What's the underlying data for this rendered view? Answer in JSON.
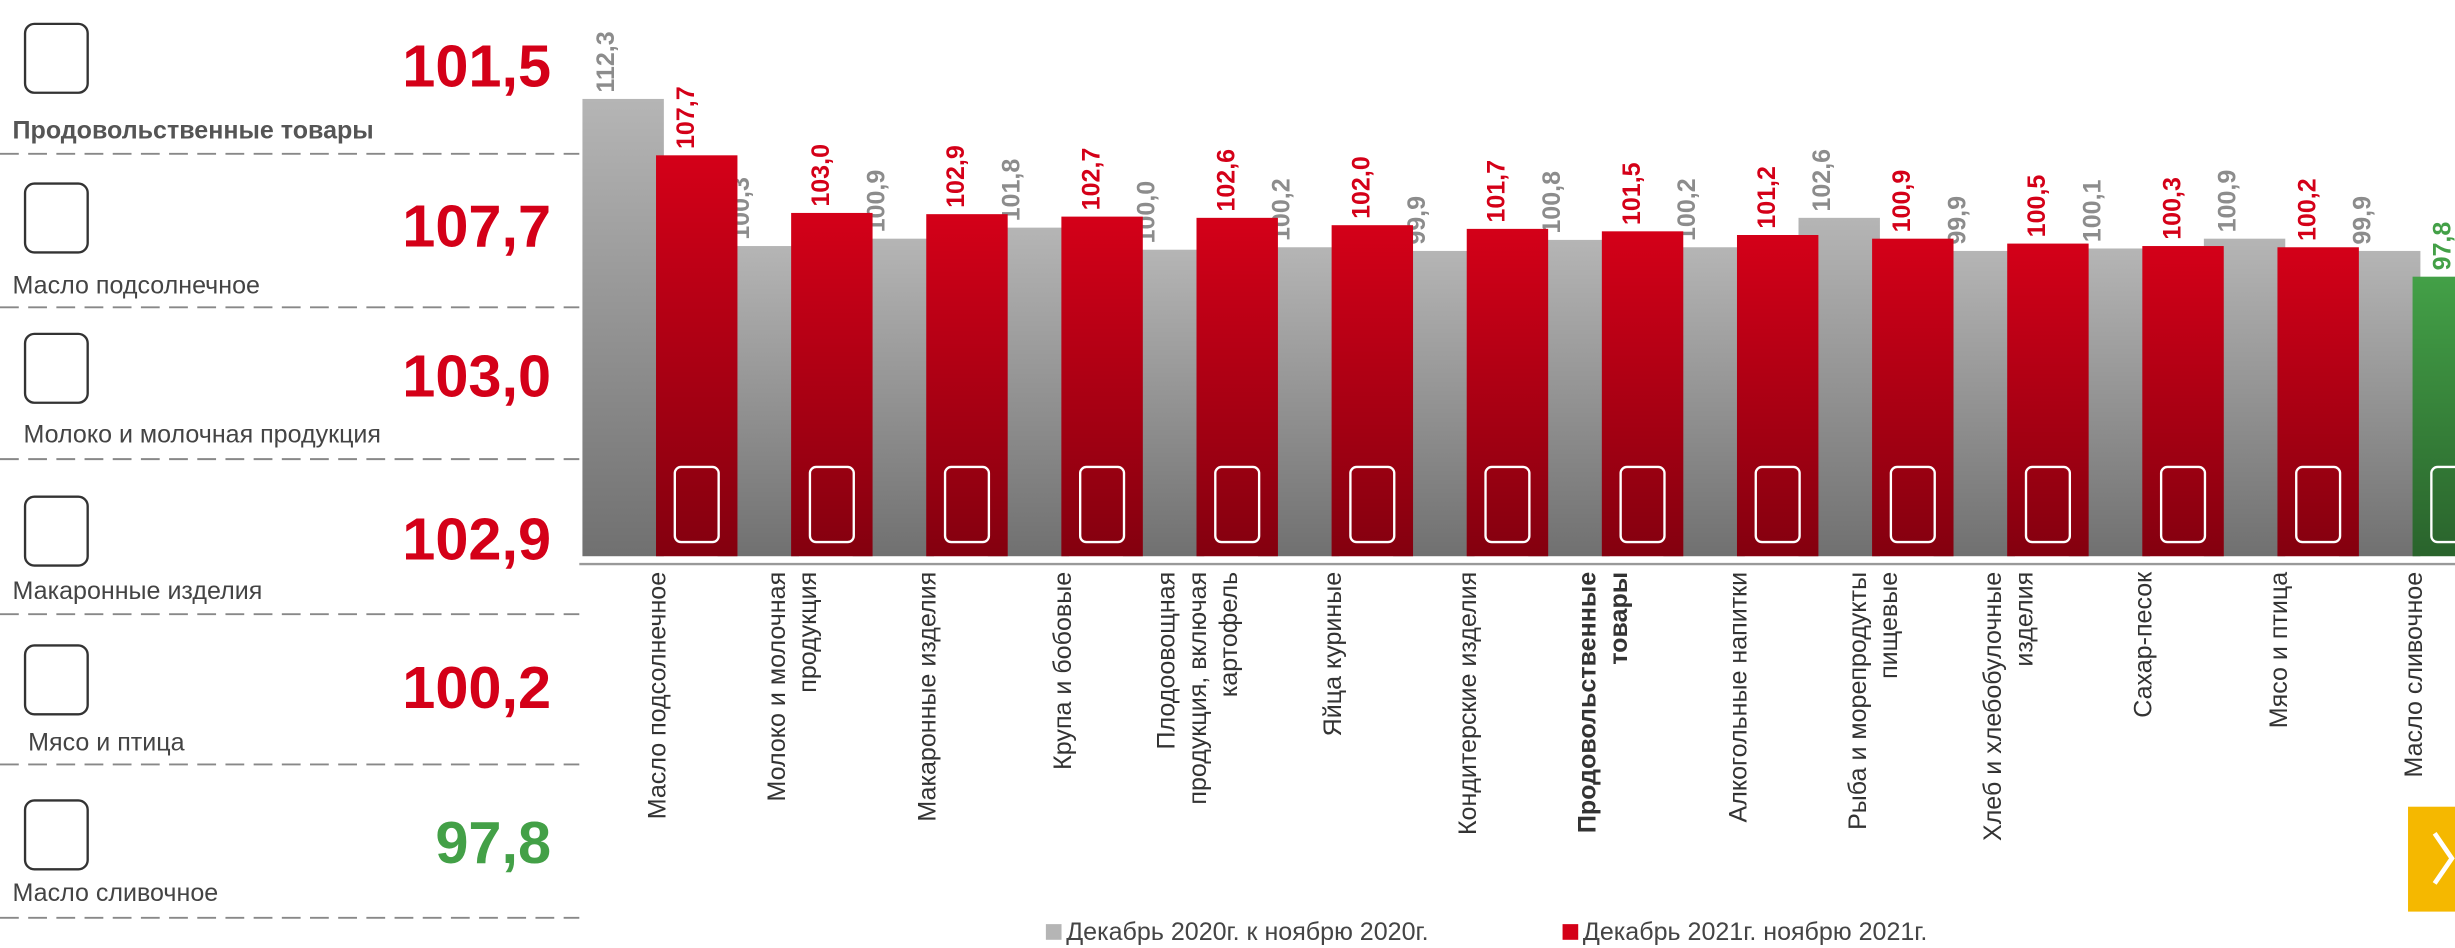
{
  "panel": {
    "items": [
      {
        "label": "Продовольственные товары",
        "value": "101,5",
        "color": "#d40018",
        "bold": true
      },
      {
        "label": "Масло подсолнечное",
        "value": "107,7",
        "color": "#d40018"
      },
      {
        "label": "Молоко и молочная продукция",
        "value": "103,0",
        "color": "#d40018"
      },
      {
        "label": "Макаронные изделия",
        "value": "102,9",
        "color": "#d40018"
      },
      {
        "label": "Мясо и птица",
        "value": "100,2",
        "color": "#d40018"
      },
      {
        "label": "Масло сливочное",
        "value": "97,8",
        "color": "#43a047"
      }
    ]
  },
  "chart_data": {
    "type": "bar",
    "categories": [
      "Масло подсолнечное",
      "Молоко и молочная\nпродукция",
      "Макаронные изделия",
      "Крупа и бобовые",
      "Плодоовощная\nпродукция, включая\nкартофель",
      "Яйца куриные",
      "Кондитерские изделия",
      "Продовольственные\nтовары",
      "Алкогольные напитки",
      "Рыба и морепродукты\nпищевые",
      "Хлеб и хлебобулочные\nизделия",
      "Сахар-песок",
      "Мясо и птица",
      "Масло сливочное"
    ],
    "highlight_category": 7,
    "series": [
      {
        "name": "Декабрь 2020г. к ноябрю 2020г.",
        "color": "#b5b5b5",
        "label_color": "#8c8c8c",
        "values": [
          112.3,
          100.3,
          100.9,
          101.8,
          100.0,
          100.2,
          99.9,
          100.8,
          100.2,
          102.6,
          99.9,
          100.1,
          100.9,
          99.9
        ],
        "value_labels": [
          "112,3",
          "100,3",
          "100,9",
          "101,8",
          "100,0",
          "100,2",
          "99,9",
          "100,8",
          "100,2",
          "102,6",
          "99,9",
          "100,1",
          "100,9",
          "99,9"
        ]
      },
      {
        "name": "Декабрь 2021г. ноябрю 2021г.",
        "color": "#d40018",
        "label_color": "#d40018",
        "highlight": {
          "index": 13,
          "color": "#43a047"
        },
        "values": [
          107.7,
          103.0,
          102.9,
          102.7,
          102.6,
          102.0,
          101.7,
          101.5,
          101.2,
          100.9,
          100.5,
          100.3,
          100.2,
          97.8
        ],
        "value_labels": [
          "107,7",
          "103,0",
          "102,9",
          "102,7",
          "102,6",
          "102,0",
          "101,7",
          "101,5",
          "101,2",
          "100,9",
          "100,5",
          "100,3",
          "100,2",
          "97,8"
        ]
      }
    ],
    "ylim": [
      75,
      115
    ]
  }
}
